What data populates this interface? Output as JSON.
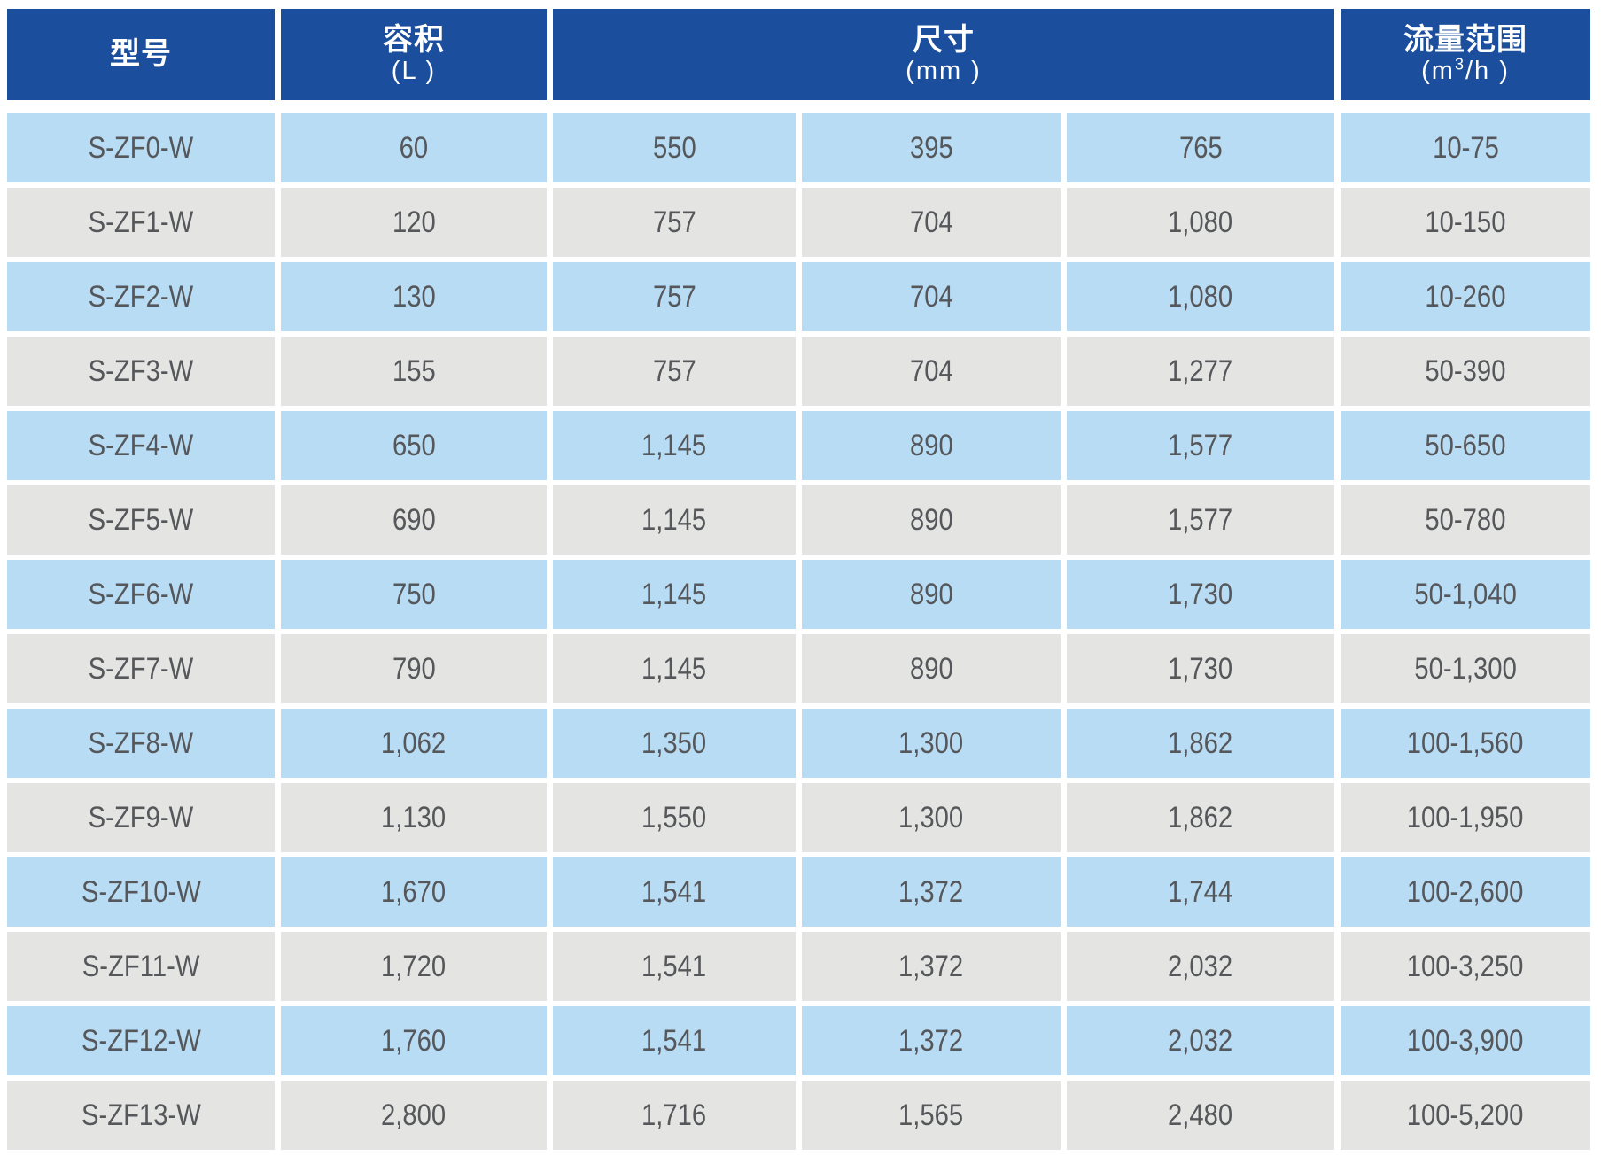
{
  "colors": {
    "header_bg": "#1b4e9c",
    "row_blue": "#b8dcf4",
    "row_gray": "#e4e4e3",
    "cell_text": "#55575a",
    "header_text": "#ffffff"
  },
  "table": {
    "header": {
      "model": "型号",
      "volume_title": "容积",
      "volume_unit": "(L )",
      "dimensions_title": "尺寸",
      "dimensions_unit": "(mm )",
      "flow_title": "流量范围",
      "flow_unit_prefix": "(m",
      "flow_unit_sup": "3",
      "flow_unit_suffix": "/h )"
    },
    "rows": [
      {
        "model": "S-ZF0-W",
        "volume": "60",
        "dim1": "550",
        "dim2": "395",
        "dim3": "765",
        "flow": "10-75"
      },
      {
        "model": "S-ZF1-W",
        "volume": "120",
        "dim1": "757",
        "dim2": "704",
        "dim3": "1,080",
        "flow": "10-150"
      },
      {
        "model": "S-ZF2-W",
        "volume": "130",
        "dim1": "757",
        "dim2": "704",
        "dim3": "1,080",
        "flow": "10-260"
      },
      {
        "model": "S-ZF3-W",
        "volume": "155",
        "dim1": "757",
        "dim2": "704",
        "dim3": "1,277",
        "flow": "50-390"
      },
      {
        "model": "S-ZF4-W",
        "volume": "650",
        "dim1": "1,145",
        "dim2": "890",
        "dim3": "1,577",
        "flow": "50-650"
      },
      {
        "model": "S-ZF5-W",
        "volume": "690",
        "dim1": "1,145",
        "dim2": "890",
        "dim3": "1,577",
        "flow": "50-780"
      },
      {
        "model": "S-ZF6-W",
        "volume": "750",
        "dim1": "1,145",
        "dim2": "890",
        "dim3": "1,730",
        "flow": "50-1,040"
      },
      {
        "model": "S-ZF7-W",
        "volume": "790",
        "dim1": "1,145",
        "dim2": "890",
        "dim3": "1,730",
        "flow": "50-1,300"
      },
      {
        "model": "S-ZF8-W",
        "volume": "1,062",
        "dim1": "1,350",
        "dim2": "1,300",
        "dim3": "1,862",
        "flow": "100-1,560"
      },
      {
        "model": "S-ZF9-W",
        "volume": "1,130",
        "dim1": "1,550",
        "dim2": "1,300",
        "dim3": "1,862",
        "flow": "100-1,950"
      },
      {
        "model": "S-ZF10-W",
        "volume": "1,670",
        "dim1": "1,541",
        "dim2": "1,372",
        "dim3": "1,744",
        "flow": "100-2,600"
      },
      {
        "model": "S-ZF11-W",
        "volume": "1,720",
        "dim1": "1,541",
        "dim2": "1,372",
        "dim3": "2,032",
        "flow": "100-3,250"
      },
      {
        "model": "S-ZF12-W",
        "volume": "1,760",
        "dim1": "1,541",
        "dim2": "1,372",
        "dim3": "2,032",
        "flow": "100-3,900"
      },
      {
        "model": "S-ZF13-W",
        "volume": "2,800",
        "dim1": "1,716",
        "dim2": "1,565",
        "dim3": "2,480",
        "flow": "100-5,200"
      }
    ]
  }
}
